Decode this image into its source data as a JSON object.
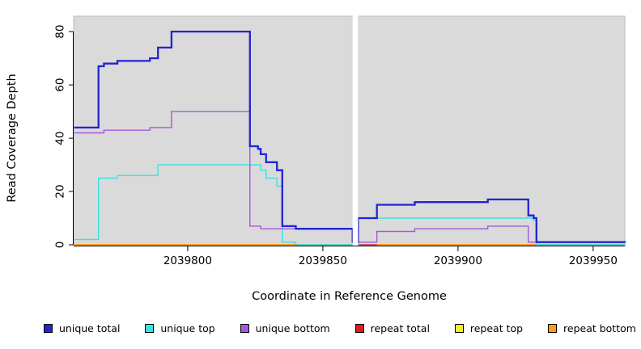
{
  "chart_data": {
    "type": "line",
    "subtype": "step",
    "title": "",
    "xlabel": "Coordinate in Reference Genome",
    "ylabel": "Read Coverage Depth",
    "xlim": [
      2039757.8,
      2039961.7
    ],
    "ylim": [
      -0.3,
      85.8
    ],
    "xticks": [
      2039800,
      2039850,
      2039900,
      2039950
    ],
    "yticks": [
      0,
      20,
      40,
      60,
      80
    ],
    "grid": false,
    "legend_position": "bottom",
    "panel_bg": "#dadada",
    "panel_border": "#bcbcbc",
    "axis_color": "#000000",
    "gap_band": {
      "from": 2039861,
      "to": 2039863,
      "color": "#ffffff"
    },
    "series": [
      {
        "name": "unique total",
        "color": "#2323d2",
        "line_width": 2.3,
        "points": [
          [
            2039758,
            44
          ],
          [
            2039767,
            67
          ],
          [
            2039769,
            68
          ],
          [
            2039774,
            69
          ],
          [
            2039786,
            70
          ],
          [
            2039789,
            74
          ],
          [
            2039794,
            80
          ],
          [
            2039823,
            37
          ],
          [
            2039826,
            36
          ],
          [
            2039827,
            34
          ],
          [
            2039829,
            31
          ],
          [
            2039833,
            28
          ],
          [
            2039835,
            7
          ],
          [
            2039840,
            6
          ],
          [
            2039861,
            1
          ],
          [
            2039863,
            10
          ],
          [
            2039870,
            15
          ],
          [
            2039884,
            16
          ],
          [
            2039911,
            17
          ],
          [
            2039926,
            11
          ],
          [
            2039928,
            10
          ],
          [
            2039929,
            1
          ],
          [
            2039962,
            1
          ]
        ]
      },
      {
        "name": "unique top",
        "color": "#35e3e8",
        "line_width": 1.4,
        "points": [
          [
            2039758,
            2
          ],
          [
            2039767,
            25
          ],
          [
            2039774,
            26
          ],
          [
            2039789,
            30
          ],
          [
            2039827,
            28
          ],
          [
            2039829,
            25
          ],
          [
            2039833,
            22
          ],
          [
            2039835,
            1
          ],
          [
            2039840,
            0
          ],
          [
            2039863,
            10
          ],
          [
            2039928,
            9
          ],
          [
            2039929,
            0
          ],
          [
            2039962,
            0
          ]
        ]
      },
      {
        "name": "unique bottom",
        "color": "#a756de",
        "line_width": 1.4,
        "points": [
          [
            2039758,
            42
          ],
          [
            2039769,
            43
          ],
          [
            2039786,
            44
          ],
          [
            2039794,
            50
          ],
          [
            2039823,
            7
          ],
          [
            2039827,
            6
          ],
          [
            2039861,
            1
          ],
          [
            2039870,
            5
          ],
          [
            2039884,
            6
          ],
          [
            2039911,
            7
          ],
          [
            2039926,
            1
          ],
          [
            2039962,
            1
          ]
        ]
      },
      {
        "name": "repeat total",
        "color": "#dd1c1c",
        "line_width": 1.4,
        "points": [
          [
            2039758,
            0
          ],
          [
            2039962,
            0
          ]
        ]
      },
      {
        "name": "repeat top",
        "color": "#f2ef2a",
        "line_width": 1.4,
        "points": [
          [
            2039758,
            0
          ],
          [
            2039962,
            0
          ]
        ]
      },
      {
        "name": "repeat bottom",
        "color": "#ff9e14",
        "line_width": 1.7,
        "points": [
          [
            2039758,
            0
          ],
          [
            2039962,
            0
          ]
        ]
      }
    ],
    "zero_overlap_segments": [
      {
        "from": 2039840,
        "to": 2039861,
        "color": "#7cc87f"
      },
      {
        "from": 2039863,
        "to": 2039870,
        "color": "#c4447c"
      },
      {
        "from": 2039929,
        "to": 2039962,
        "color": "#7cc87f"
      }
    ]
  }
}
